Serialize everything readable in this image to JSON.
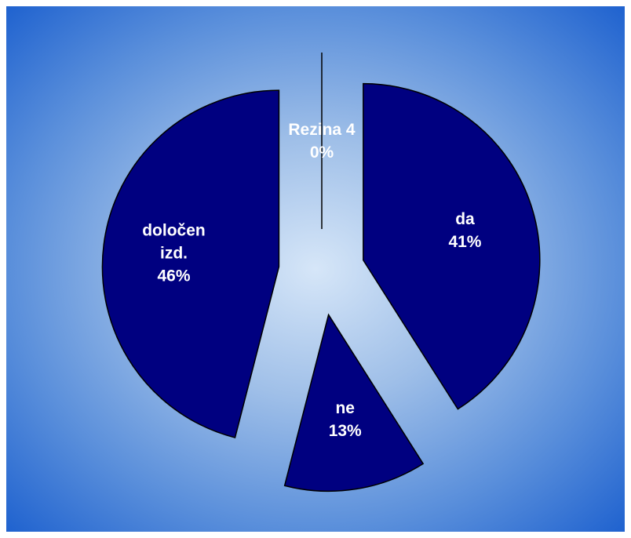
{
  "chart_data": {
    "type": "pie",
    "categories": [
      "da",
      "ne",
      "določen izd.",
      "Rezina 4"
    ],
    "values": [
      41,
      13,
      46,
      0
    ],
    "value_labels": [
      "41%",
      "13%",
      "46%",
      "0%"
    ],
    "color": "#000080"
  }
}
